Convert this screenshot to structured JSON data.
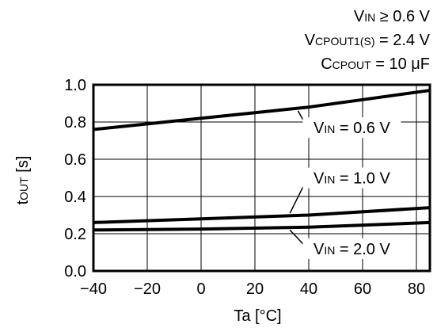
{
  "conditions": [
    {
      "main": "V",
      "sub": "IN",
      "rest": " ≥ 0.6 V"
    },
    {
      "main": "V",
      "sub": "CPOUT1(S)",
      "rest": " = 2.4 V"
    },
    {
      "main": "C",
      "sub": "CPOUT",
      "rest": " = 10 μF"
    }
  ],
  "chart_data": {
    "type": "line",
    "xlabel": "Ta [°C]",
    "ylabel_main": "t",
    "ylabel_sub": "OUT",
    "ylabel_rest": " [s]",
    "xlim": [
      -40,
      85
    ],
    "ylim": [
      0,
      1.0
    ],
    "xticks": [
      -40,
      -20,
      0,
      20,
      40,
      60,
      80
    ],
    "xtick_labels": [
      "−40",
      "−20",
      "0",
      "20",
      "40",
      "60",
      "80"
    ],
    "yticks": [
      0,
      0.2,
      0.4,
      0.6,
      0.8,
      1.0
    ],
    "ytick_labels": [
      "0.0",
      "0.2",
      "0.4",
      "0.6",
      "0.8",
      "1.0"
    ],
    "grid": true,
    "series": [
      {
        "name_main": "V",
        "name_sub": "IN",
        "name_rest": " = 0.6 V",
        "x": [
          -40,
          -20,
          0,
          20,
          40,
          60,
          85
        ],
        "y": [
          0.76,
          0.79,
          0.82,
          0.85,
          0.88,
          0.92,
          0.97
        ],
        "label_at": [
          56,
          0.74
        ],
        "pointer_from": [
          36,
          0.86
        ]
      },
      {
        "name_main": "V",
        "name_sub": "IN",
        "name_rest": " = 1.0 V",
        "x": [
          -40,
          0,
          40,
          85
        ],
        "y": [
          0.26,
          0.28,
          0.3,
          0.34
        ],
        "label_at": [
          56,
          0.47
        ],
        "pointer_from": [
          33,
          0.31
        ]
      },
      {
        "name_main": "V",
        "name_sub": "IN",
        "name_rest": " = 2.0 V",
        "x": [
          -40,
          0,
          40,
          85
        ],
        "y": [
          0.22,
          0.225,
          0.235,
          0.26
        ],
        "label_at": [
          56,
          0.09
        ],
        "pointer_from": [
          33,
          0.22
        ]
      }
    ]
  }
}
